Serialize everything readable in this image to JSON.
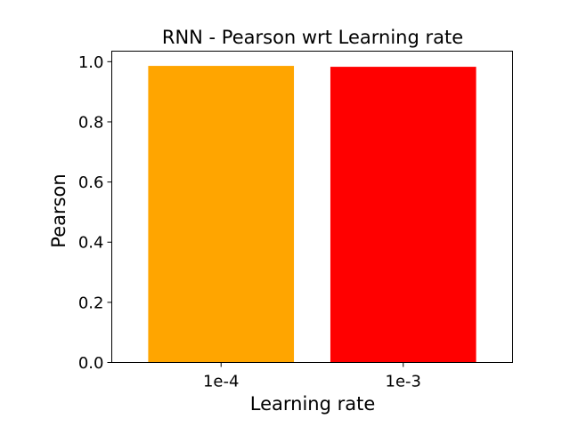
{
  "chart_data": {
    "type": "bar",
    "title": "RNN - Pearson wrt Learning rate",
    "xlabel": "Learning rate",
    "ylabel": "Pearson",
    "categories": [
      "1e-4",
      "1e-3"
    ],
    "values": [
      0.986,
      0.983
    ],
    "colors": [
      "#ffa500",
      "#ff0000"
    ],
    "ylim": [
      0,
      1.035
    ],
    "yticks": [
      0.0,
      0.2,
      0.4,
      0.6,
      0.8,
      1.0
    ],
    "ytick_labels": [
      "0.0",
      "0.2",
      "0.4",
      "0.6",
      "0.8",
      "1.0"
    ],
    "grid": false,
    "legend": "none"
  }
}
